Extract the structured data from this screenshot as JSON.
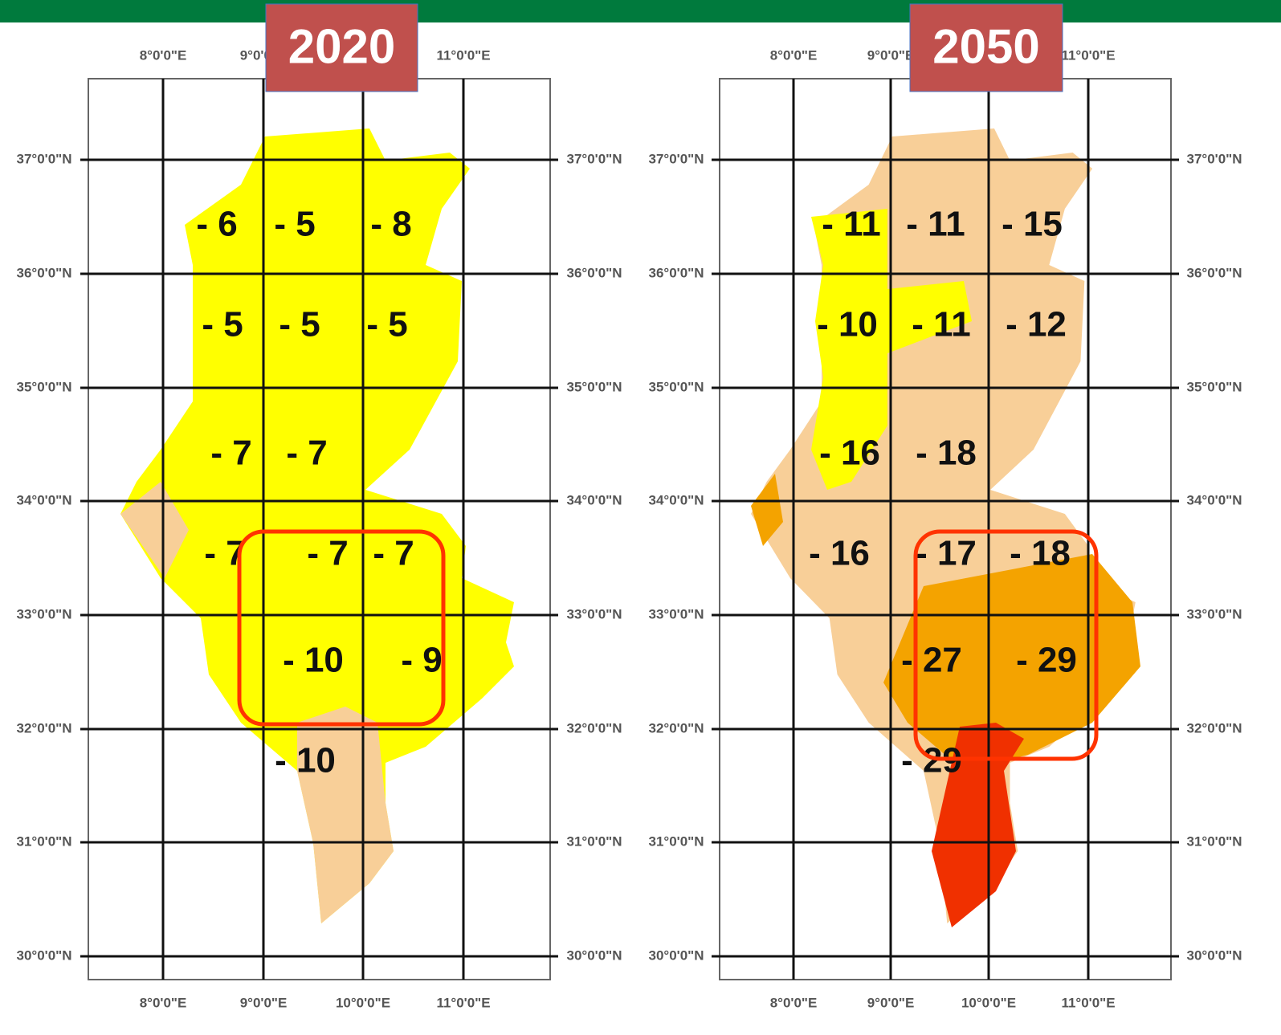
{
  "maps": [
    {
      "title": "2020",
      "top_labels": [
        "8°0'0\"E",
        "9°0'0\"E",
        "11°0'0\"E"
      ],
      "bottom_labels": [
        "8°0'0\"E",
        "9°0'0\"E",
        "10°0'0\"E",
        "11°0'0\"E"
      ],
      "left_labels": [
        "37°0'0\"N",
        "36°0'0\"N",
        "35°0'0\"N",
        "34°0'0\"N",
        "33°0'0\"N",
        "32°0'0\"N",
        "31°0'0\"N",
        "30°0'0\"N"
      ],
      "right_labels": [
        "37°0'0\"N",
        "36°0'0\"N",
        "35°0'0\"N",
        "34°0'0\"N",
        "33°0'0\"N",
        "32°0'0\"N",
        "31°0'0\"N",
        "30°0'0\"N"
      ],
      "cells": [
        "- 6",
        "- 5",
        "- 8",
        "- 5",
        "- 5",
        "- 5",
        "- 7",
        "- 7",
        "- 7",
        "- 7",
        "- 7",
        "- 10",
        "- 9",
        "- 10"
      ]
    },
    {
      "title": "2050",
      "top_labels": [
        "8°0'0\"E",
        "9°0'0\"E",
        "11°0'0\"E"
      ],
      "bottom_labels": [
        "8°0'0\"E",
        "9°0'0\"E",
        "10°0'0\"E",
        "11°0'0\"E"
      ],
      "left_labels": [
        "37°0'0\"N",
        "36°0'0\"N",
        "35°0'0\"N",
        "34°0'0\"N",
        "33°0'0\"N",
        "32°0'0\"N",
        "31°0'0\"N",
        "30°0'0\"N"
      ],
      "right_labels": [
        "37°0'0\"N",
        "36°0'0\"N",
        "35°0'0\"N",
        "34°0'0\"N",
        "33°0'0\"N",
        "32°0'0\"N",
        "31°0'0\"N",
        "30°0'0\"N"
      ],
      "cells": [
        "- 11",
        "- 11",
        "- 15",
        "- 10",
        "- 11",
        "- 12",
        "- 16",
        "- 18",
        "- 16",
        "- 17",
        "- 18",
        "- 27",
        "- 29",
        "- 29"
      ]
    }
  ]
}
